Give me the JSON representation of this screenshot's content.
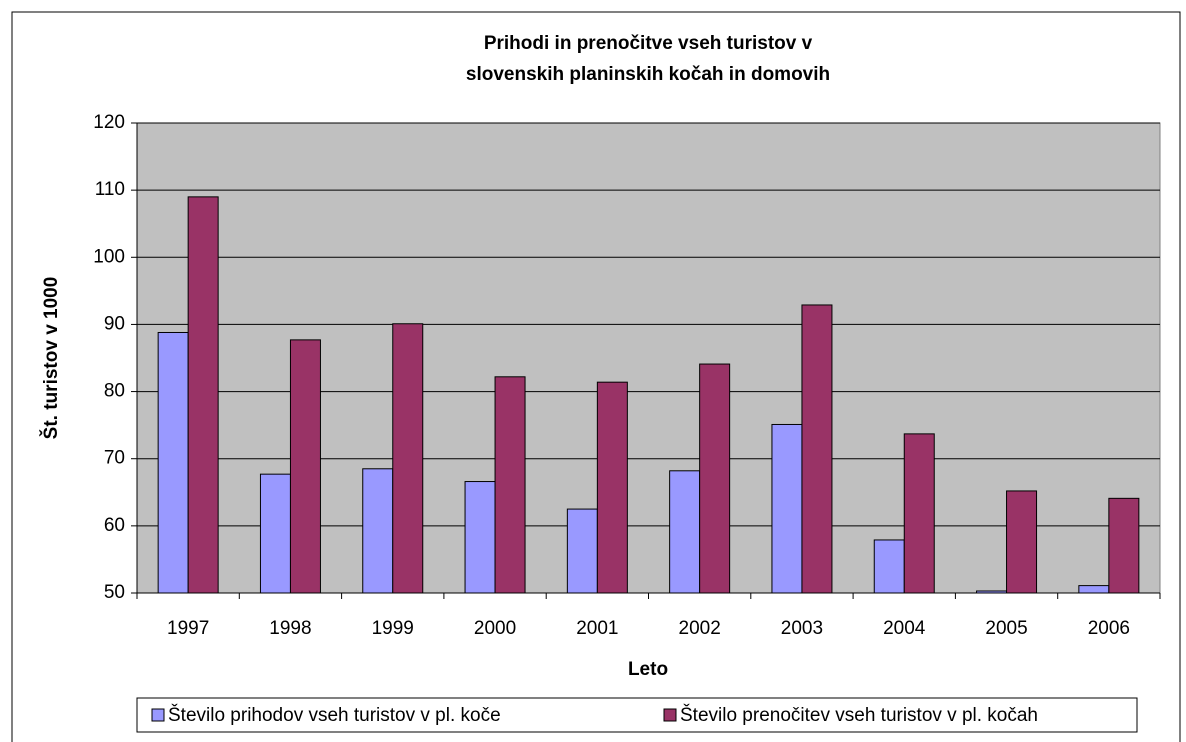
{
  "chart_data": {
    "type": "bar",
    "title": [
      "Prihodi in prenočitve vseh turistov v",
      "slovenskih planinskih kočah in domovih"
    ],
    "x_label": "Leto",
    "y_label": "Št. turistov v 1000",
    "categories": [
      "1997",
      "1998",
      "1999",
      "2000",
      "2001",
      "2002",
      "2003",
      "2004",
      "2005",
      "2006"
    ],
    "series": [
      {
        "name": "Število prihodov vseh turistov v pl. koče",
        "color": "#9999ff",
        "values": [
          88.8,
          67.7,
          68.5,
          66.6,
          62.5,
          68.2,
          75.1,
          57.9,
          50.3,
          51.1
        ]
      },
      {
        "name": "Število prenočitev vseh turistov v pl. kočah",
        "color": "#993366",
        "values": [
          109,
          87.7,
          90.1,
          82.2,
          81.4,
          84.1,
          92.9,
          73.7,
          65.2,
          64.1
        ]
      }
    ],
    "ylim": [
      50,
      120
    ],
    "yticks": [
      50,
      60,
      70,
      80,
      90,
      100,
      110,
      120
    ],
    "grid": true,
    "legend": "bottom"
  }
}
